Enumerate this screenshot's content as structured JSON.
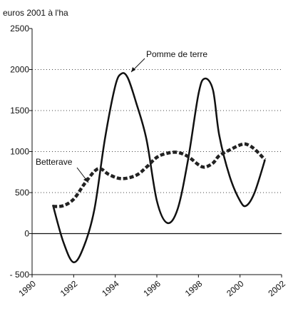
{
  "chart_data": {
    "type": "line",
    "y_label": "euros 2001 à l'ha",
    "xlim": [
      1990,
      2002
    ],
    "xticks": [
      1990,
      1992,
      1994,
      1996,
      1998,
      2000,
      2002
    ],
    "ylim": [
      -500,
      2500
    ],
    "yticks": [
      {
        "value": -500,
        "label": "- 500"
      },
      0,
      500,
      1000,
      1500,
      2000,
      2500
    ],
    "grid": true,
    "series": [
      {
        "name": "Pomme de terre",
        "color": "#111111",
        "style": "solid",
        "x": [
          1991,
          1991.5,
          1992,
          1992.5,
          1993,
          1993.5,
          1994,
          1994.3,
          1994.6,
          1995,
          1995.5,
          1996,
          1996.5,
          1997,
          1997.5,
          1998,
          1998.3,
          1998.7,
          1999,
          1999.5,
          2000,
          2000.3,
          2000.7,
          2001.2
        ],
        "values": [
          350,
          -100,
          -350,
          -150,
          300,
          1150,
          1800,
          1950,
          1900,
          1600,
          1150,
          400,
          130,
          300,
          900,
          1700,
          1890,
          1750,
          1200,
          700,
          400,
          340,
          500,
          900
        ]
      },
      {
        "name": "Betterave",
        "color": "#222222",
        "style": "dashed",
        "x": [
          1991,
          1991.5,
          1992,
          1992.5,
          1993,
          1993.3,
          1993.7,
          1994.3,
          1995,
          1995.5,
          1996,
          1996.5,
          1997,
          1997.5,
          1998,
          1998.3,
          1998.7,
          1999,
          1999.5,
          2000,
          2000.3,
          2000.7,
          2001.2
        ],
        "values": [
          330,
          340,
          420,
          600,
          760,
          790,
          720,
          670,
          710,
          810,
          930,
          980,
          990,
          940,
          840,
          810,
          860,
          950,
          1020,
          1080,
          1090,
          1030,
          900
        ]
      }
    ]
  }
}
